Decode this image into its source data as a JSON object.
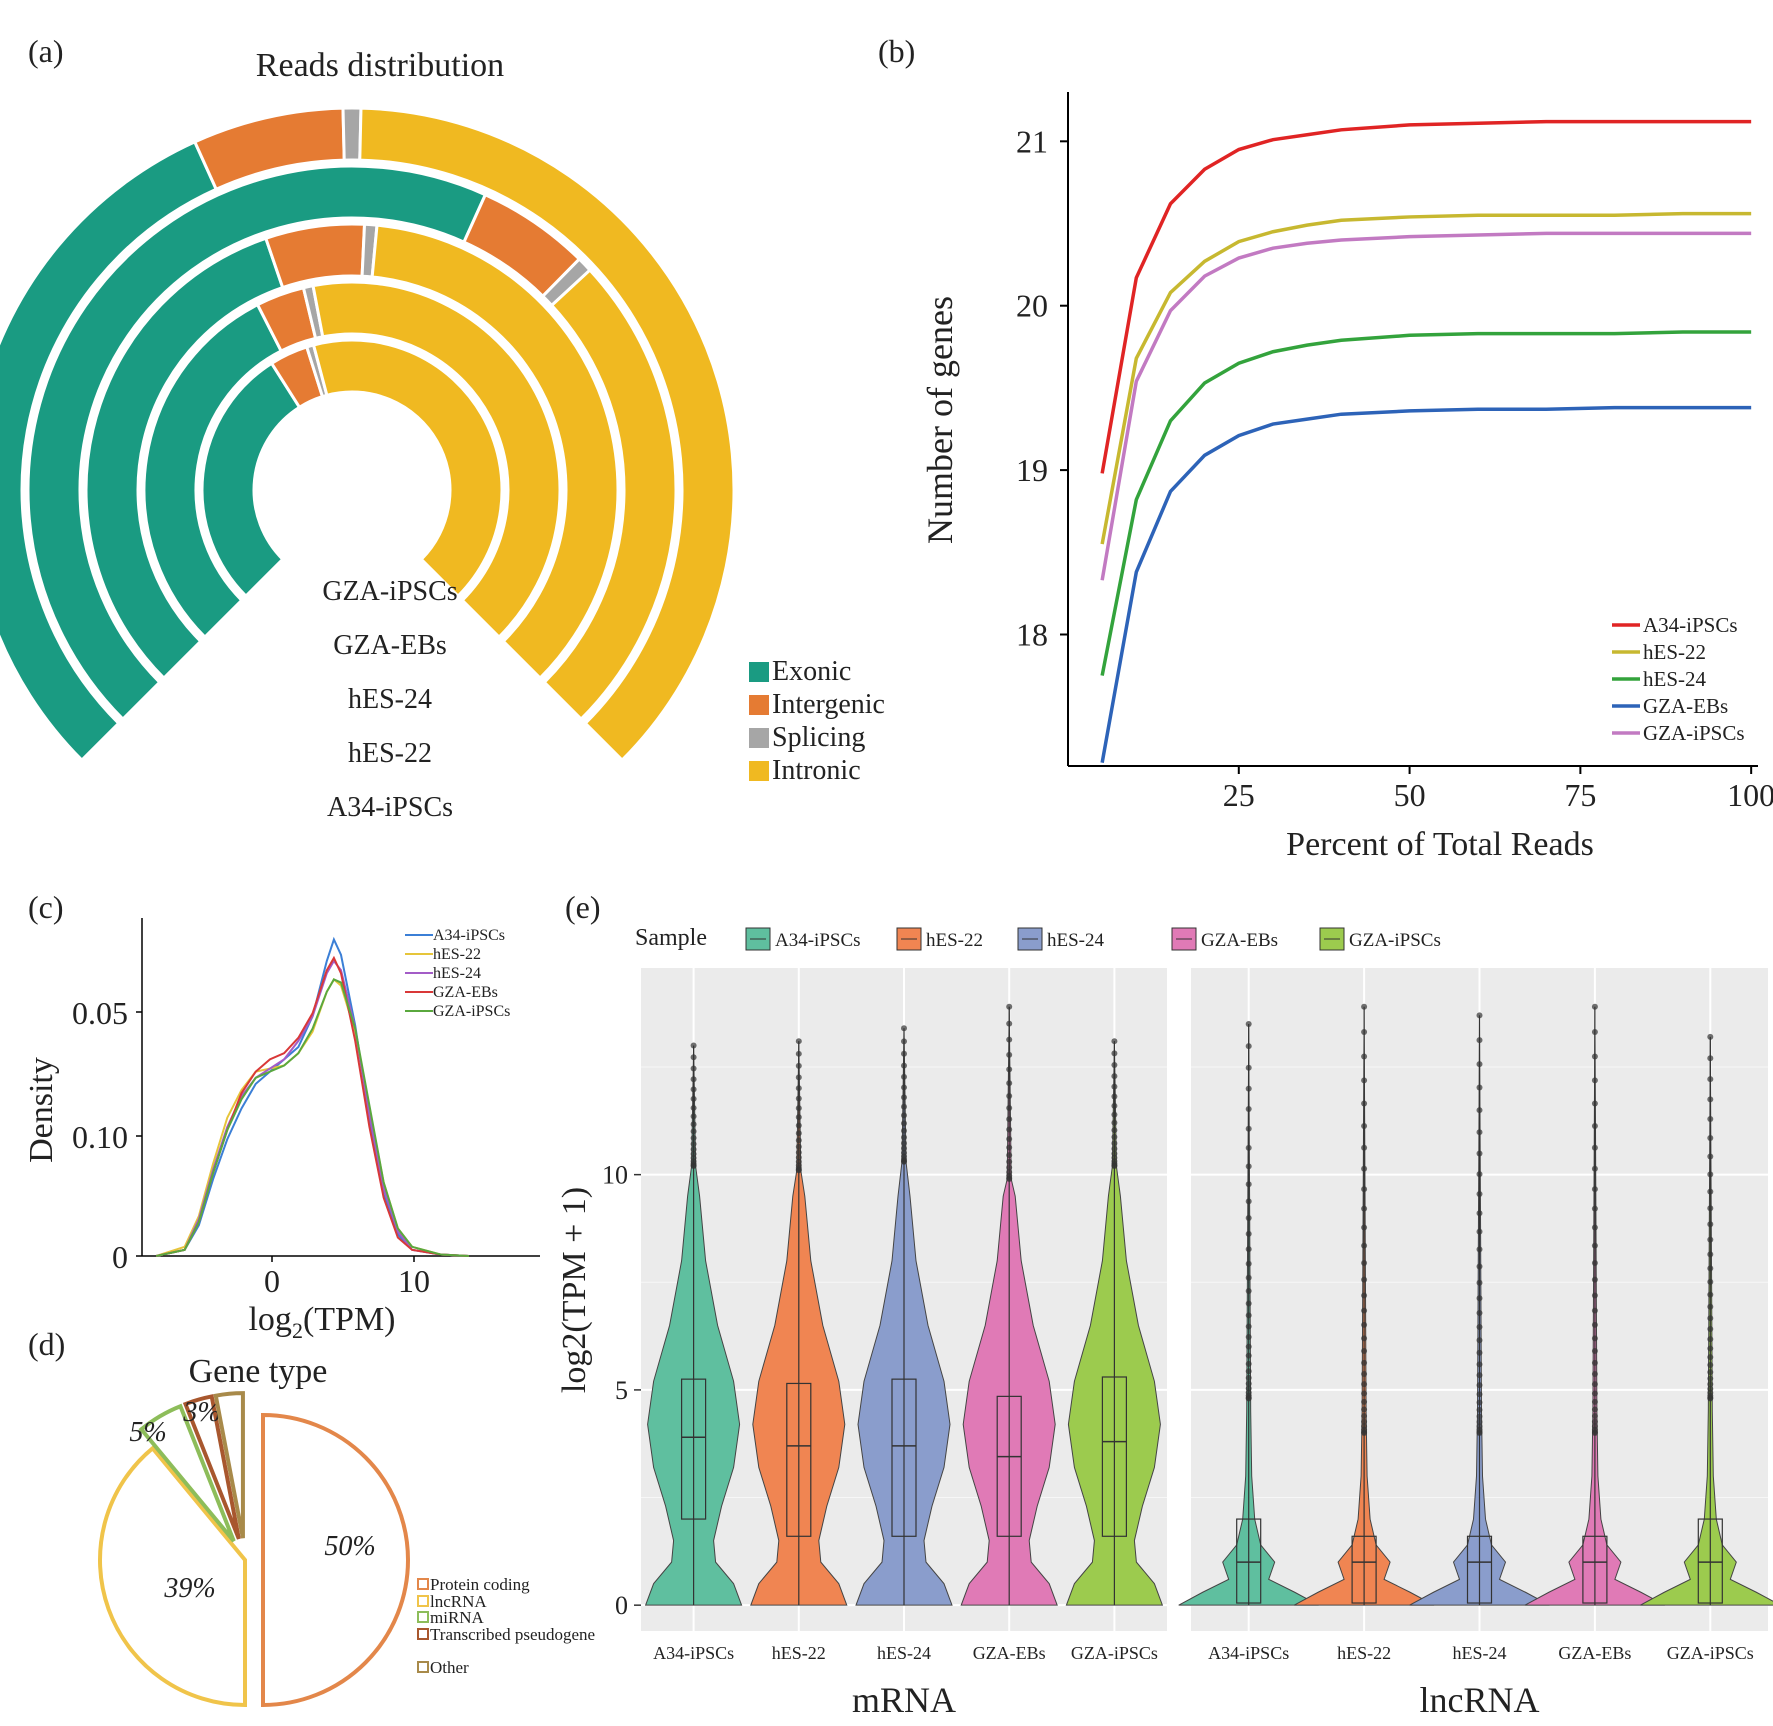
{
  "panels": {
    "a": {
      "label": "(a)",
      "chart_data": {
        "type": "radial-bar",
        "title": "Reads distribution",
        "samples": [
          "GZA-iPSCs",
          "GZA-EBs",
          "hES-24",
          "hES-22",
          "A34-iPSCs"
        ],
        "categories": [
          "Exonic",
          "Intergenic",
          "Splicing",
          "Intronic"
        ],
        "colors": {
          "Exonic": "#1a9b82",
          "Intergenic": "#e57b33",
          "Splicing": "#a6a6a6",
          "Intronic": "#f0b921"
        },
        "series": [
          {
            "name": "GZA-iPSCs",
            "values": {
              "Exonic": 0.38,
              "Intergenic": 0.055,
              "Splicing": 0.01,
              "Intronic": 0.555
            }
          },
          {
            "name": "GZA-EBs",
            "values": {
              "Exonic": 0.4,
              "Intergenic": 0.05,
              "Splicing": 0.01,
              "Intronic": 0.54
            }
          },
          {
            "name": "hES-24",
            "values": {
              "Exonic": 0.43,
              "Intergenic": 0.08,
              "Splicing": 0.01,
              "Intronic": 0.48
            }
          },
          {
            "name": "hES-22",
            "values": {
              "Exonic": 0.59,
              "Intergenic": 0.075,
              "Splicing": 0.01,
              "Intronic": 0.325
            }
          },
          {
            "name": "A34-iPSCs",
            "values": {
              "Exonic": 0.41,
              "Intergenic": 0.085,
              "Splicing": 0.01,
              "Intronic": 0.495
            }
          }
        ],
        "legend_position": "bottom-right"
      }
    },
    "b": {
      "label": "(b)",
      "chart_data": {
        "type": "line",
        "xlabel": "Percent of Total Reads",
        "ylabel": "Number of genes",
        "xticks": [
          "25",
          "50",
          "75",
          "100"
        ],
        "yticks": [
          "18",
          "19",
          "20",
          "21"
        ],
        "xlim": [
          0,
          101
        ],
        "ylim": [
          17.2,
          21.3
        ],
        "x": [
          5,
          10,
          15,
          20,
          25,
          30,
          35,
          40,
          50,
          60,
          70,
          80,
          90,
          100
        ],
        "series": [
          {
            "name": "A34-iPSCs",
            "color": "#e02424",
            "values": [
              18.98,
              20.17,
              20.62,
              20.83,
              20.95,
              21.01,
              21.04,
              21.07,
              21.1,
              21.11,
              21.12,
              21.12,
              21.12,
              21.12
            ]
          },
          {
            "name": "hES-22",
            "color": "#c7b830",
            "values": [
              18.55,
              19.68,
              20.08,
              20.27,
              20.39,
              20.45,
              20.49,
              20.52,
              20.54,
              20.55,
              20.55,
              20.55,
              20.56,
              20.56
            ]
          },
          {
            "name": "hES-24",
            "color": "#33a33c",
            "values": [
              17.75,
              18.82,
              19.3,
              19.53,
              19.65,
              19.72,
              19.76,
              19.79,
              19.82,
              19.83,
              19.83,
              19.83,
              19.84,
              19.84
            ]
          },
          {
            "name": "GZA-EBs",
            "color": "#2d63b8",
            "values": [
              17.22,
              18.38,
              18.87,
              19.09,
              19.21,
              19.28,
              19.31,
              19.34,
              19.36,
              19.37,
              19.37,
              19.38,
              19.38,
              19.38
            ]
          },
          {
            "name": "GZA-iPSCs",
            "color": "#c27ac2",
            "values": [
              18.33,
              19.54,
              19.97,
              20.18,
              20.29,
              20.35,
              20.38,
              20.4,
              20.42,
              20.43,
              20.44,
              20.44,
              20.44,
              20.44
            ]
          }
        ],
        "legend_position": "bottom-right"
      }
    },
    "c": {
      "label": "(c)",
      "chart_data": {
        "type": "line",
        "xlabel": "log2(TPM)",
        "ylabel": "Density",
        "xticks": [
          "0",
          "10"
        ],
        "yticks": [
          "0.05",
          "0.10",
          "0"
        ],
        "xlim": [
          -9,
          19
        ],
        "x": [
          -8,
          -6,
          -5,
          -4,
          -3,
          -2,
          -1,
          0,
          1,
          2,
          3,
          4,
          4.5,
          5,
          6,
          7,
          8,
          9,
          10,
          12,
          14
        ],
        "series": [
          {
            "name": "A34-iPSCs",
            "color": "#3b7fd6",
            "values": [
              0,
              0.002,
              0.01,
              0.025,
              0.038,
              0.048,
              0.056,
              0.06,
              0.064,
              0.068,
              0.078,
              0.096,
              0.103,
              0.098,
              0.075,
              0.045,
              0.02,
              0.007,
              0.002,
              0.0005,
              0
            ]
          },
          {
            "name": "hES-22",
            "color": "#e6c53a",
            "values": [
              0,
              0.003,
              0.013,
              0.03,
              0.045,
              0.054,
              0.06,
              0.061,
              0.062,
              0.066,
              0.073,
              0.086,
              0.09,
              0.088,
              0.073,
              0.048,
              0.024,
              0.009,
              0.003,
              0.0005,
              0
            ]
          },
          {
            "name": "hES-24",
            "color": "#a35cc7",
            "values": [
              0,
              0.002,
              0.012,
              0.028,
              0.042,
              0.052,
              0.058,
              0.061,
              0.064,
              0.07,
              0.078,
              0.092,
              0.096,
              0.093,
              0.074,
              0.046,
              0.022,
              0.008,
              0.002,
              0.0005,
              0
            ]
          },
          {
            "name": "GZA-EBs",
            "color": "#d93838",
            "values": [
              0,
              0.002,
              0.011,
              0.027,
              0.041,
              0.053,
              0.06,
              0.064,
              0.066,
              0.071,
              0.079,
              0.093,
              0.097,
              0.092,
              0.07,
              0.042,
              0.019,
              0.006,
              0.002,
              0.0005,
              0
            ]
          },
          {
            "name": "GZA-iPSCs",
            "color": "#5aa83e",
            "values": [
              0,
              0.002,
              0.011,
              0.027,
              0.041,
              0.051,
              0.058,
              0.06,
              0.062,
              0.066,
              0.074,
              0.086,
              0.09,
              0.089,
              0.074,
              0.049,
              0.024,
              0.009,
              0.003,
              0.0005,
              0
            ]
          }
        ],
        "legend_position": "top-right"
      }
    },
    "d": {
      "label": "(d)",
      "chart_data": {
        "type": "pie",
        "title": "Gene type",
        "slices": [
          {
            "name": "Protein coding",
            "value": 50,
            "label": "50%",
            "color": "#e3874a"
          },
          {
            "name": "lncRNA",
            "value": 39,
            "label": "39%",
            "color": "#f0c44a"
          },
          {
            "name": "miRNA",
            "value": 5,
            "label": "5%",
            "color": "#8dbd5a"
          },
          {
            "name": "Transcribed pseudogene",
            "value": 3,
            "label": "3%",
            "color": "#a8572e"
          },
          {
            "name": "Other",
            "value": 3,
            "label": "",
            "color": "#a88a4a"
          }
        ],
        "legend_position": "bottom-right"
      }
    },
    "e": {
      "label": "(e)",
      "legend_title": "Sample",
      "chart_data": {
        "type": "violin",
        "ylabel": "log2(TPM + 1)",
        "yticks": [
          "0",
          "5",
          "10"
        ],
        "ylim": [
          -0.6,
          14.8
        ],
        "categories": [
          "A34-iPSCs",
          "hES-22",
          "hES-24",
          "GZA-EBs",
          "GZA-iPSCs"
        ],
        "colors": [
          "#5fbf9f",
          "#f08552",
          "#8a9dcc",
          "#e07ab6",
          "#9ccb4e"
        ],
        "facets": [
          {
            "name": "mRNA",
            "boxes": [
              {
                "q1": 2.0,
                "median": 3.9,
                "q3": 5.25,
                "whisker_hi": 10.2,
                "max": 13.0
              },
              {
                "q1": 1.6,
                "median": 3.7,
                "q3": 5.15,
                "whisker_hi": 10.1,
                "max": 13.1
              },
              {
                "q1": 1.6,
                "median": 3.7,
                "q3": 5.25,
                "whisker_hi": 10.3,
                "max": 13.4
              },
              {
                "q1": 1.6,
                "median": 3.45,
                "q3": 4.85,
                "whisker_hi": 9.9,
                "max": 13.9
              },
              {
                "q1": 1.6,
                "median": 3.8,
                "q3": 5.3,
                "whisker_hi": 10.2,
                "max": 13.1
              }
            ]
          },
          {
            "name": "lncRNA",
            "boxes": [
              {
                "q1": 0.05,
                "median": 1.0,
                "q3": 2.0,
                "whisker_hi": 4.8,
                "max": 13.5
              },
              {
                "q1": 0.05,
                "median": 1.0,
                "q3": 1.6,
                "whisker_hi": 4.0,
                "max": 13.9
              },
              {
                "q1": 0.05,
                "median": 1.0,
                "q3": 1.6,
                "whisker_hi": 4.0,
                "max": 13.7
              },
              {
                "q1": 0.05,
                "median": 1.0,
                "q3": 1.6,
                "whisker_hi": 4.0,
                "max": 13.9
              },
              {
                "q1": 0.05,
                "median": 1.0,
                "q3": 2.0,
                "whisker_hi": 4.8,
                "max": 13.2
              }
            ]
          }
        ],
        "grid": true,
        "legend_position": "top"
      }
    }
  }
}
